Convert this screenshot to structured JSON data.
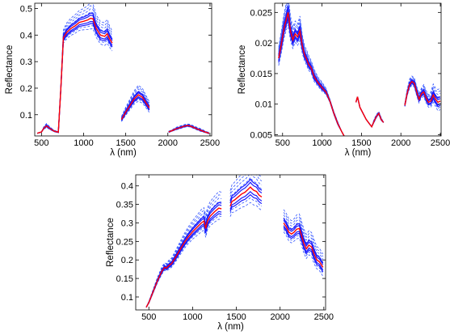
{
  "figure_title": "",
  "chart_data": [
    {
      "type": "line",
      "xlabel": "λ (nm)",
      "ylabel": "Reflectance",
      "xlim": [
        420,
        2520
      ],
      "ylim": [
        0.02,
        0.52
      ],
      "xticks": [
        500,
        1000,
        1500,
        2000,
        2500
      ],
      "yticks": [
        0.1,
        0.2,
        0.3,
        0.4,
        0.5
      ],
      "ytick_labels": [
        "0.1",
        "0.2",
        "0.3",
        "0.4",
        "0.5"
      ],
      "grid": false,
      "segments": [
        {
          "x": [
            450,
            500,
            530,
            560,
            600,
            650,
            700,
            730,
            760,
            800,
            850,
            900,
            950,
            1000,
            1050,
            1080,
            1110,
            1150,
            1200,
            1250,
            1280,
            1310,
            1340
          ],
          "y": [
            0.03,
            0.035,
            0.05,
            0.058,
            0.048,
            0.038,
            0.034,
            0.2,
            0.39,
            0.41,
            0.425,
            0.435,
            0.448,
            0.452,
            0.457,
            0.463,
            0.462,
            0.425,
            0.4,
            0.395,
            0.405,
            0.385,
            0.37
          ],
          "spread": [
            0.0,
            0.0,
            0.002,
            0.003,
            0.002,
            0.001,
            0.001,
            0.004,
            0.01,
            0.012,
            0.013,
            0.014,
            0.015,
            0.016,
            0.018,
            0.02,
            0.019,
            0.017,
            0.017,
            0.017,
            0.018,
            0.016,
            0.015
          ]
        },
        {
          "x": [
            1450,
            1500,
            1550,
            1600,
            1650,
            1700,
            1750,
            1780
          ],
          "y": [
            0.082,
            0.11,
            0.135,
            0.16,
            0.175,
            0.165,
            0.14,
            0.125
          ],
          "spread": [
            0.004,
            0.006,
            0.008,
            0.01,
            0.012,
            0.011,
            0.009,
            0.008
          ]
        },
        {
          "x": [
            2010,
            2050,
            2100,
            2150,
            2200,
            2230,
            2260,
            2300,
            2350,
            2400,
            2450,
            2490
          ],
          "y": [
            0.035,
            0.04,
            0.047,
            0.052,
            0.057,
            0.059,
            0.058,
            0.053,
            0.046,
            0.04,
            0.034,
            0.03
          ],
          "spread": [
            0.001,
            0.001,
            0.002,
            0.002,
            0.002,
            0.002,
            0.002,
            0.002,
            0.002,
            0.002,
            0.001,
            0.001
          ]
        }
      ]
    },
    {
      "type": "line",
      "xlabel": "λ (nm)",
      "ylabel": "Reflectance",
      "xlim": [
        400,
        2510
      ],
      "ylim": [
        0.0048,
        0.0265
      ],
      "xticks": [
        500,
        1000,
        1500,
        2000,
        2500
      ],
      "yticks": [
        0.005,
        0.01,
        0.015,
        0.02,
        0.025
      ],
      "ytick_labels": [
        "0.005",
        "0.01",
        "0.015",
        "0.02",
        "0.025"
      ],
      "grid": false,
      "segments": [
        {
          "x": [
            450,
            480,
            520,
            550,
            570,
            600,
            630,
            660,
            690,
            720,
            750,
            780,
            800,
            830,
            860,
            900,
            950,
            1000,
            1050,
            1100,
            1150,
            1200,
            1250,
            1280
          ],
          "y": [
            0.0175,
            0.0195,
            0.0225,
            0.024,
            0.025,
            0.022,
            0.0205,
            0.0215,
            0.021,
            0.022,
            0.0195,
            0.018,
            0.0175,
            0.0165,
            0.016,
            0.0145,
            0.0135,
            0.0127,
            0.012,
            0.0105,
            0.0085,
            0.0068,
            0.0055,
            0.0048
          ],
          "spread": [
            0.0006,
            0.0007,
            0.0008,
            0.0009,
            0.001,
            0.0008,
            0.0007,
            0.0007,
            0.0007,
            0.0008,
            0.0006,
            0.0005,
            0.0005,
            0.0005,
            0.0004,
            0.0004,
            0.0003,
            0.0003,
            0.0002,
            0.0001,
            0.0001,
            0.0001,
            0.0,
            0.0
          ]
        },
        {
          "x": [
            1430,
            1450,
            1480,
            1520,
            1560,
            1600,
            1630,
            1660,
            1690,
            1720,
            1750,
            1780
          ],
          "y": [
            0.0103,
            0.0112,
            0.0095,
            0.0085,
            0.0075,
            0.0068,
            0.0063,
            0.0072,
            0.008,
            0.0085,
            0.0075,
            0.007
          ],
          "spread": [
            0.0,
            0.0,
            0.0,
            0.0,
            0.0,
            0.0,
            0.0,
            0.0001,
            0.0001,
            0.0001,
            0.0001,
            0.0
          ]
        },
        {
          "x": [
            2050,
            2080,
            2110,
            2140,
            2170,
            2200,
            2230,
            2260,
            2290,
            2320,
            2350,
            2380,
            2410,
            2440,
            2470,
            2500
          ],
          "y": [
            0.0098,
            0.0118,
            0.0132,
            0.0137,
            0.0134,
            0.012,
            0.0108,
            0.0117,
            0.012,
            0.011,
            0.0103,
            0.0105,
            0.0115,
            0.0108,
            0.0103,
            0.0105
          ],
          "spread": [
            0.0001,
            0.0002,
            0.0003,
            0.0003,
            0.0003,
            0.0003,
            0.0003,
            0.0003,
            0.0004,
            0.0004,
            0.0004,
            0.0005,
            0.0006,
            0.0006,
            0.0007,
            0.0007
          ]
        }
      ]
    },
    {
      "type": "line",
      "xlabel": "λ (nm)",
      "ylabel": "Reflectance",
      "xlim": [
        350,
        2520
      ],
      "ylim": [
        0.065,
        0.43
      ],
      "xticks": [
        500,
        1000,
        1500,
        2000,
        2500
      ],
      "yticks": [
        0.1,
        0.15,
        0.2,
        0.25,
        0.3,
        0.35,
        0.4
      ],
      "ytick_labels": [
        "0.1",
        "0.15",
        "0.2",
        "0.25",
        "0.3",
        "0.35",
        "0.4"
      ],
      "grid": false,
      "segments": [
        {
          "x": [
            470,
            500,
            550,
            600,
            650,
            680,
            700,
            730,
            760,
            800,
            850,
            900,
            950,
            1000,
            1050,
            1100,
            1130,
            1150,
            1170,
            1200,
            1250,
            1300,
            1330
          ],
          "y": [
            0.072,
            0.085,
            0.115,
            0.145,
            0.17,
            0.18,
            0.178,
            0.185,
            0.19,
            0.205,
            0.225,
            0.245,
            0.262,
            0.276,
            0.288,
            0.3,
            0.305,
            0.285,
            0.305,
            0.318,
            0.33,
            0.34,
            0.338
          ],
          "spread": [
            0.0,
            0.001,
            0.002,
            0.003,
            0.004,
            0.004,
            0.004,
            0.005,
            0.005,
            0.006,
            0.007,
            0.008,
            0.009,
            0.01,
            0.011,
            0.012,
            0.012,
            0.012,
            0.012,
            0.013,
            0.014,
            0.015,
            0.015
          ]
        },
        {
          "x": [
            1430,
            1450,
            1480,
            1520,
            1560,
            1600,
            1640,
            1660,
            1680,
            1700,
            1730,
            1760,
            1790
          ],
          "y": [
            0.345,
            0.358,
            0.362,
            0.37,
            0.378,
            0.383,
            0.392,
            0.397,
            0.392,
            0.388,
            0.385,
            0.375,
            0.37
          ],
          "spread": [
            0.014,
            0.015,
            0.016,
            0.017,
            0.018,
            0.019,
            0.02,
            0.021,
            0.02,
            0.02,
            0.019,
            0.018,
            0.018
          ]
        },
        {
          "x": [
            2040,
            2070,
            2100,
            2130,
            2160,
            2190,
            2220,
            2240,
            2270,
            2300,
            2330,
            2360,
            2390,
            2420,
            2450,
            2490
          ],
          "y": [
            0.3,
            0.29,
            0.275,
            0.27,
            0.275,
            0.283,
            0.285,
            0.27,
            0.245,
            0.23,
            0.24,
            0.235,
            0.215,
            0.2,
            0.195,
            0.18
          ],
          "spread": [
            0.012,
            0.012,
            0.012,
            0.012,
            0.012,
            0.013,
            0.013,
            0.013,
            0.013,
            0.013,
            0.013,
            0.013,
            0.013,
            0.012,
            0.012,
            0.012
          ]
        }
      ]
    }
  ],
  "colors": {
    "mean_line": "#ff0000",
    "solid_lines": "#1a1aff",
    "dashed_lines": "#3355ff",
    "axis": "#000000"
  }
}
